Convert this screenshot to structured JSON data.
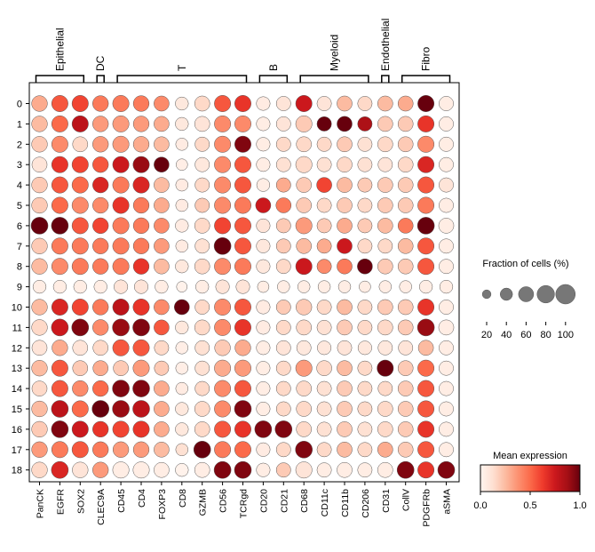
{
  "chart_data": {
    "type": "dotplot",
    "groups": [
      {
        "label": "Epithelial",
        "from": 0,
        "to": 2
      },
      {
        "label": "DC",
        "from": 3,
        "to": 3
      },
      {
        "label": "T",
        "from": 4,
        "to": 10
      },
      {
        "label": "B",
        "from": 11,
        "to": 12
      },
      {
        "label": "Myeloid",
        "from": 13,
        "to": 16
      },
      {
        "label": "Endothelial",
        "from": 17,
        "to": 17
      },
      {
        "label": "Fibro",
        "from": 18,
        "to": 20
      }
    ],
    "genes": [
      "PanCK",
      "EGFR",
      "SOX2",
      "CLEC9A",
      "CD45",
      "CD4",
      "FOXP3",
      "CD8",
      "GZMB",
      "CD56",
      "TCRgd",
      "CD20",
      "CD21",
      "CD68",
      "CD11c",
      "CD11b",
      "CD206",
      "CD31",
      "CollV",
      "PDGFRb",
      "aSMA"
    ],
    "clusters": [
      "0",
      "1",
      "2",
      "3",
      "4",
      "5",
      "6",
      "7",
      "8",
      "9",
      "10",
      "11",
      "12",
      "13",
      "14",
      "15",
      "16",
      "17",
      "18"
    ],
    "size_levels": [
      [
        65,
        70,
        70,
        65,
        70,
        65,
        60,
        45,
        60,
        70,
        70,
        50,
        55,
        70,
        55,
        60,
        55,
        60,
        60,
        70,
        55
      ],
      [
        65,
        70,
        70,
        65,
        70,
        65,
        60,
        45,
        60,
        70,
        70,
        50,
        55,
        70,
        55,
        60,
        55,
        60,
        60,
        70,
        55
      ],
      [
        65,
        70,
        60,
        65,
        70,
        65,
        60,
        40,
        55,
        70,
        70,
        50,
        55,
        60,
        55,
        60,
        55,
        60,
        60,
        70,
        55
      ],
      [
        60,
        70,
        70,
        65,
        70,
        70,
        60,
        35,
        55,
        70,
        70,
        50,
        55,
        70,
        55,
        60,
        55,
        55,
        60,
        70,
        55
      ],
      [
        65,
        70,
        70,
        65,
        70,
        70,
        60,
        40,
        55,
        70,
        70,
        45,
        55,
        60,
        60,
        60,
        55,
        60,
        60,
        70,
        55
      ],
      [
        65,
        70,
        70,
        65,
        70,
        65,
        60,
        40,
        55,
        70,
        70,
        60,
        60,
        60,
        55,
        60,
        55,
        60,
        60,
        70,
        55
      ],
      [
        75,
        75,
        70,
        65,
        70,
        65,
        60,
        45,
        60,
        70,
        70,
        50,
        55,
        70,
        55,
        60,
        55,
        60,
        60,
        75,
        60
      ],
      [
        65,
        70,
        70,
        65,
        70,
        65,
        60,
        40,
        55,
        75,
        70,
        50,
        55,
        60,
        55,
        60,
        55,
        55,
        60,
        70,
        55
      ],
      [
        65,
        70,
        70,
        65,
        70,
        65,
        60,
        45,
        60,
        70,
        70,
        50,
        55,
        70,
        55,
        60,
        60,
        60,
        60,
        70,
        55
      ],
      [
        45,
        45,
        45,
        45,
        50,
        50,
        45,
        30,
        45,
        50,
        50,
        35,
        40,
        40,
        40,
        40,
        35,
        40,
        40,
        45,
        45
      ],
      [
        65,
        70,
        70,
        65,
        70,
        70,
        60,
        60,
        55,
        70,
        70,
        50,
        55,
        65,
        55,
        60,
        55,
        60,
        60,
        70,
        55
      ],
      [
        65,
        75,
        75,
        65,
        75,
        75,
        60,
        45,
        60,
        70,
        70,
        50,
        55,
        60,
        55,
        60,
        55,
        60,
        60,
        75,
        60
      ],
      [
        60,
        65,
        60,
        60,
        70,
        70,
        55,
        40,
        55,
        65,
        65,
        50,
        55,
        55,
        50,
        55,
        50,
        55,
        55,
        60,
        55
      ],
      [
        65,
        70,
        60,
        60,
        60,
        70,
        55,
        40,
        55,
        70,
        70,
        50,
        55,
        70,
        60,
        60,
        55,
        70,
        60,
        70,
        55
      ],
      [
        60,
        70,
        65,
        65,
        75,
        75,
        60,
        40,
        55,
        70,
        70,
        50,
        55,
        60,
        55,
        60,
        55,
        55,
        60,
        70,
        55
      ],
      [
        65,
        75,
        70,
        75,
        75,
        75,
        60,
        45,
        60,
        70,
        75,
        50,
        55,
        60,
        55,
        60,
        55,
        60,
        60,
        70,
        55
      ],
      [
        65,
        75,
        70,
        65,
        70,
        70,
        60,
        45,
        60,
        70,
        70,
        75,
        75,
        60,
        55,
        60,
        55,
        60,
        60,
        70,
        55
      ],
      [
        65,
        70,
        70,
        65,
        65,
        65,
        60,
        40,
        75,
        70,
        70,
        50,
        55,
        75,
        55,
        60,
        55,
        60,
        60,
        70,
        55
      ],
      [
        65,
        75,
        65,
        65,
        70,
        70,
        60,
        45,
        60,
        75,
        75,
        50,
        55,
        70,
        55,
        60,
        55,
        60,
        75,
        70,
        75
      ]
    ],
    "color_levels": [
      [
        0.3,
        0.55,
        0.6,
        0.45,
        0.45,
        0.45,
        0.4,
        0.08,
        0.15,
        0.55,
        0.65,
        0.06,
        0.1,
        0.75,
        0.1,
        0.25,
        0.15,
        0.25,
        0.3,
        1.0,
        0.05
      ],
      [
        0.25,
        0.5,
        0.8,
        0.35,
        0.35,
        0.35,
        0.3,
        0.08,
        0.1,
        0.4,
        0.4,
        0.05,
        0.1,
        0.2,
        1.0,
        1.0,
        0.85,
        0.2,
        0.2,
        0.65,
        0.05
      ],
      [
        0.2,
        0.4,
        0.15,
        0.35,
        0.35,
        0.3,
        0.25,
        0.06,
        0.15,
        0.4,
        0.95,
        0.05,
        0.15,
        0.15,
        0.15,
        0.2,
        0.12,
        0.15,
        0.2,
        0.4,
        0.05
      ],
      [
        0.1,
        0.65,
        0.6,
        0.55,
        0.75,
        0.9,
        1.0,
        0.04,
        0.08,
        0.4,
        0.55,
        0.05,
        0.12,
        0.15,
        0.12,
        0.15,
        0.12,
        0.1,
        0.15,
        0.7,
        0.05
      ],
      [
        0.2,
        0.55,
        0.5,
        0.7,
        0.45,
        0.7,
        0.25,
        0.06,
        0.15,
        0.4,
        0.55,
        0.05,
        0.3,
        0.2,
        0.6,
        0.25,
        0.2,
        0.2,
        0.2,
        0.55,
        0.1
      ],
      [
        0.2,
        0.5,
        0.4,
        0.4,
        0.65,
        0.45,
        0.3,
        0.06,
        0.2,
        0.4,
        0.45,
        0.75,
        0.45,
        0.2,
        0.15,
        0.2,
        0.15,
        0.2,
        0.2,
        0.45,
        0.05
      ],
      [
        1.0,
        1.0,
        0.55,
        0.6,
        0.45,
        0.45,
        0.4,
        0.06,
        0.15,
        0.6,
        0.55,
        0.1,
        0.2,
        0.35,
        0.2,
        0.3,
        0.2,
        0.25,
        0.45,
        1.0,
        0.05
      ],
      [
        0.2,
        0.45,
        0.45,
        0.45,
        0.45,
        0.45,
        0.35,
        0.06,
        0.12,
        1.0,
        0.55,
        0.08,
        0.2,
        0.25,
        0.3,
        0.75,
        0.15,
        0.15,
        0.25,
        0.55,
        0.05
      ],
      [
        0.25,
        0.4,
        0.45,
        0.45,
        0.45,
        0.65,
        0.25,
        0.08,
        0.15,
        0.4,
        0.45,
        0.08,
        0.15,
        0.75,
        0.4,
        0.45,
        1.0,
        0.2,
        0.2,
        0.55,
        0.05
      ],
      [
        0.05,
        0.05,
        0.05,
        0.05,
        0.1,
        0.1,
        0.05,
        0.02,
        0.05,
        0.1,
        0.1,
        0.05,
        0.05,
        0.05,
        0.05,
        0.05,
        0.05,
        0.05,
        0.05,
        0.05,
        0.05
      ],
      [
        0.25,
        0.7,
        0.6,
        0.45,
        0.8,
        0.65,
        0.4,
        1.0,
        0.15,
        0.4,
        0.55,
        0.06,
        0.2,
        0.2,
        0.15,
        0.25,
        0.15,
        0.2,
        0.2,
        0.65,
        0.05
      ],
      [
        0.15,
        0.75,
        0.95,
        0.4,
        0.9,
        0.95,
        0.55,
        0.08,
        0.15,
        0.4,
        0.65,
        0.06,
        0.15,
        0.15,
        0.12,
        0.2,
        0.15,
        0.15,
        0.2,
        0.9,
        0.05
      ],
      [
        0.1,
        0.3,
        0.1,
        0.15,
        0.55,
        0.55,
        0.15,
        0.04,
        0.12,
        0.2,
        0.3,
        0.05,
        0.1,
        0.08,
        0.08,
        0.1,
        0.08,
        0.08,
        0.1,
        0.25,
        0.05
      ],
      [
        0.25,
        0.55,
        0.2,
        0.3,
        0.2,
        0.35,
        0.2,
        0.04,
        0.12,
        0.3,
        0.35,
        0.05,
        0.15,
        0.35,
        0.15,
        0.25,
        0.15,
        1.0,
        0.2,
        0.5,
        0.05
      ],
      [
        0.15,
        0.55,
        0.4,
        0.5,
        0.95,
        0.95,
        0.3,
        0.06,
        0.15,
        0.4,
        0.55,
        0.05,
        0.15,
        0.15,
        0.12,
        0.2,
        0.15,
        0.15,
        0.2,
        0.55,
        0.05
      ],
      [
        0.25,
        0.8,
        0.5,
        1.0,
        0.9,
        0.8,
        0.3,
        0.08,
        0.15,
        0.4,
        0.95,
        0.05,
        0.15,
        0.15,
        0.12,
        0.2,
        0.15,
        0.15,
        0.2,
        0.55,
        0.05
      ],
      [
        0.2,
        0.95,
        0.75,
        0.65,
        0.6,
        0.65,
        0.3,
        0.08,
        0.15,
        0.55,
        0.65,
        0.95,
        0.95,
        0.15,
        0.12,
        0.2,
        0.12,
        0.15,
        0.2,
        0.65,
        0.05
      ],
      [
        0.35,
        0.45,
        0.55,
        0.45,
        0.35,
        0.35,
        0.25,
        0.12,
        1.0,
        0.45,
        0.5,
        0.06,
        0.15,
        0.95,
        0.15,
        0.25,
        0.15,
        0.3,
        0.2,
        0.55,
        0.05
      ],
      [
        0.15,
        0.7,
        0.1,
        0.35,
        0.05,
        0.05,
        0.05,
        0.02,
        0.05,
        0.95,
        0.95,
        0.05,
        0.2,
        0.1,
        0.05,
        0.05,
        0.05,
        0.05,
        0.95,
        0.65,
        0.95
      ]
    ],
    "size_legend": {
      "title": "Fraction of cells (%)",
      "values": [
        20,
        40,
        60,
        80,
        100
      ],
      "tick_labels": [
        "20",
        "40",
        "60",
        "80",
        "100"
      ]
    },
    "color_legend": {
      "title": "Mean expression",
      "colormap": "Reds",
      "range": [
        0,
        1
      ],
      "tick_labels": [
        "0.0",
        "0.5",
        "1.0"
      ]
    }
  }
}
